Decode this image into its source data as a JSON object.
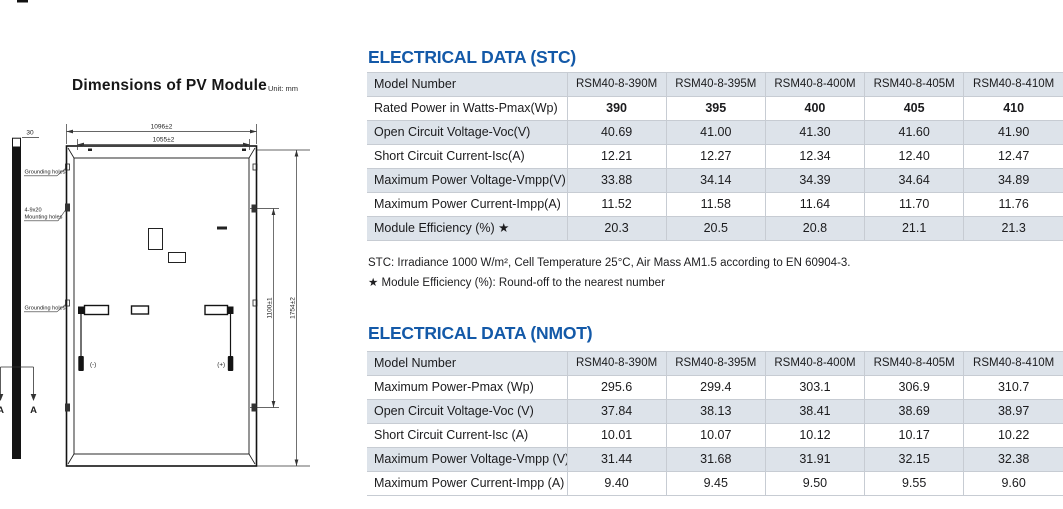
{
  "diagram": {
    "title": "Dimensions of PV Module",
    "unit_label": "Unit: mm",
    "dims": {
      "outer_width": "1096±2",
      "inner_width": "1055±2",
      "hole_span_height": "1100±1",
      "outer_height": "1754±2",
      "frame_thickness": "30"
    },
    "labels": {
      "grounding_top": "Grounding holes",
      "mounting_line1": "4-9x20",
      "mounting_line2": "Mounting holes",
      "grounding_bottom": "Grounding holes",
      "cable_negative": "(-)",
      "cable_positive": "(+)",
      "section_marker": "A"
    }
  },
  "stc": {
    "title": "ELECTRICAL DATA (STC)",
    "table": {
      "columns": [
        "Model Number",
        "RSM40-8-390M",
        "RSM40-8-395M",
        "RSM40-8-400M",
        "RSM40-8-405M",
        "RSM40-8-410M"
      ],
      "rows": [
        {
          "label": "Rated Power in Watts-Pmax(Wp)",
          "values": [
            "390",
            "395",
            "400",
            "405",
            "410"
          ],
          "bold": true
        },
        {
          "label": "Open Circuit Voltage-Voc(V)",
          "values": [
            "40.69",
            "41.00",
            "41.30",
            "41.60",
            "41.90"
          ]
        },
        {
          "label": "Short Circuit Current-Isc(A)",
          "values": [
            "12.21",
            "12.27",
            "12.34",
            "12.40",
            "12.47"
          ]
        },
        {
          "label": "Maximum Power Voltage-Vmpp(V)",
          "values": [
            "33.88",
            "34.14",
            "34.39",
            "34.64",
            "34.89"
          ]
        },
        {
          "label": "Maximum Power Current-Impp(A)",
          "values": [
            "11.52",
            "11.58",
            "11.64",
            "11.70",
            "11.76"
          ]
        },
        {
          "label": "Module Efficiency (%) ★",
          "values": [
            "20.3",
            "20.5",
            "20.8",
            "21.1",
            "21.3"
          ]
        }
      ]
    },
    "footnotes": [
      "STC: Irradiance 1000 W/m², Cell Temperature 25°C, Air Mass AM1.5 according to EN 60904-3.",
      "★ Module Efficiency (%): Round-off to the nearest number"
    ]
  },
  "nmot": {
    "title": "ELECTRICAL DATA (NMOT)",
    "table": {
      "columns": [
        "Model Number",
        "RSM40-8-390M",
        "RSM40-8-395M",
        "RSM40-8-400M",
        "RSM40-8-405M",
        "RSM40-8-410M"
      ],
      "rows": [
        {
          "label": "Maximum Power-Pmax (Wp)",
          "values": [
            "295.6",
            "299.4",
            "303.1",
            "306.9",
            "310.7"
          ]
        },
        {
          "label": "Open Circuit Voltage-Voc (V)",
          "values": [
            "37.84",
            "38.13",
            "38.41",
            "38.69",
            "38.97"
          ]
        },
        {
          "label": "Short Circuit Current-Isc (A)",
          "values": [
            "10.01",
            "10.07",
            "10.12",
            "10.17",
            "10.22"
          ]
        },
        {
          "label": "Maximum Power Voltage-Vmpp (V)",
          "values": [
            "31.44",
            "31.68",
            "31.91",
            "32.15",
            "32.38"
          ]
        },
        {
          "label": "Maximum Power Current-Impp (A)",
          "values": [
            "9.40",
            "9.45",
            "9.50",
            "9.55",
            "9.60"
          ]
        }
      ]
    }
  },
  "colors": {
    "accent_blue": "#1359a8",
    "row_stripe": "#dde3ea",
    "cell_border": "#c7ccd3"
  }
}
